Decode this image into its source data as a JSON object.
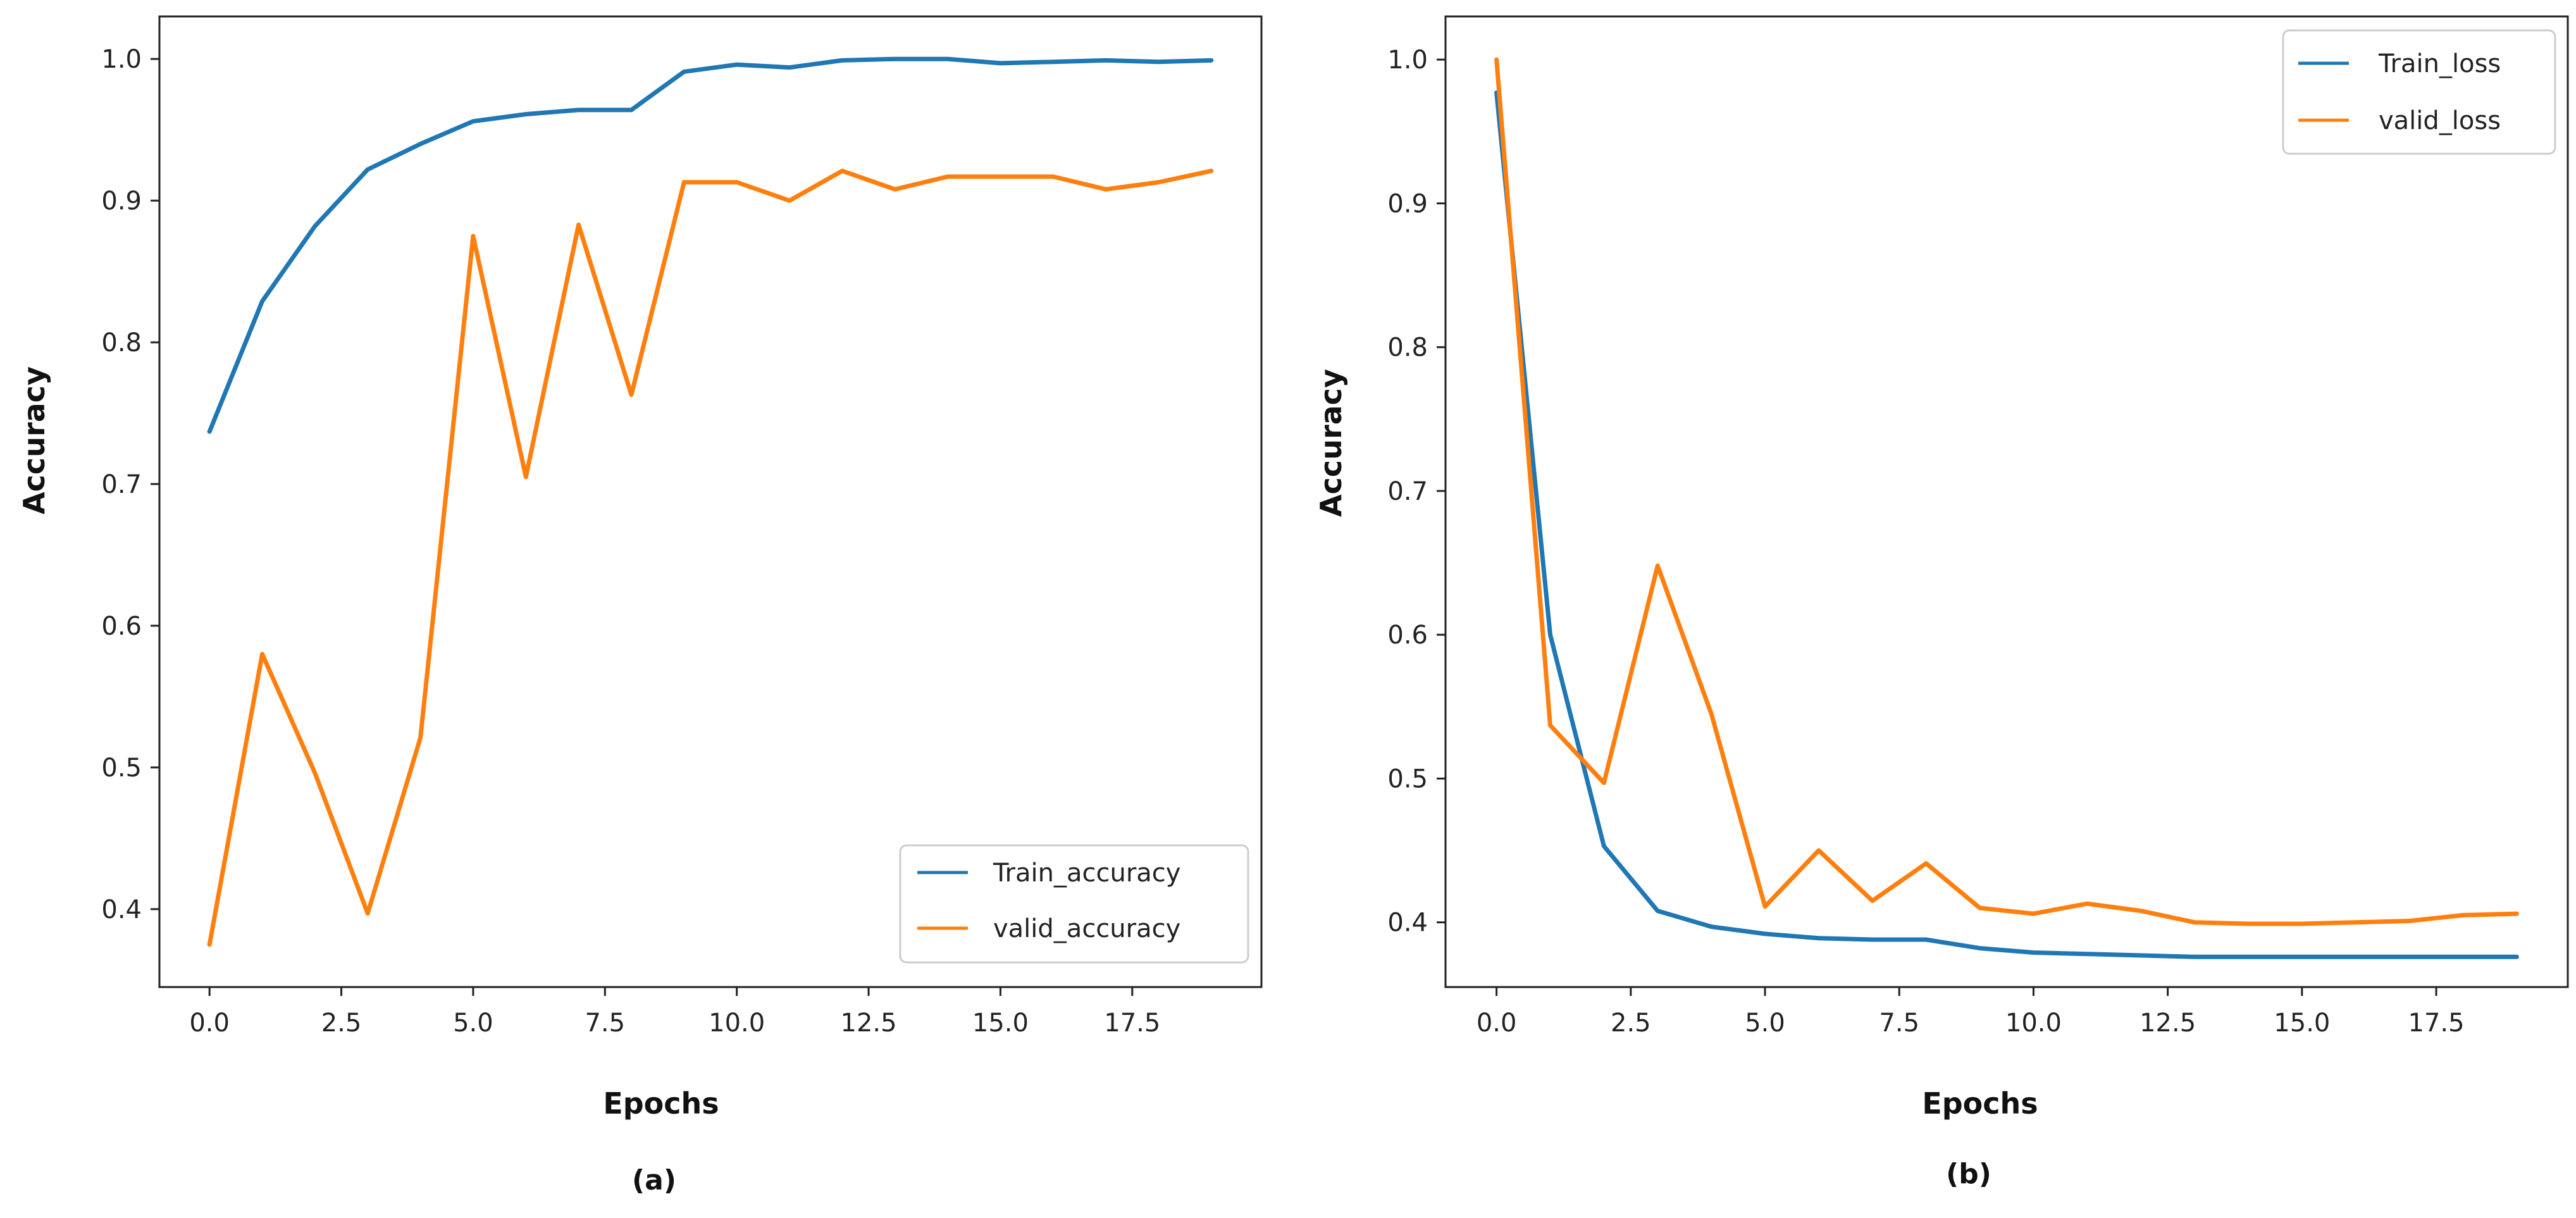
{
  "chart_data": [
    {
      "type": "line",
      "panel_label": "(a)",
      "title": "",
      "xlabel": "Epochs",
      "ylabel": "Accuracy",
      "xlim": [
        -0.95,
        19.95
      ],
      "ylim": [
        0.345,
        1.03
      ],
      "xticks": [
        0,
        2.5,
        5,
        7.5,
        10,
        12.5,
        15,
        17.5
      ],
      "xtick_labels": [
        "0.0",
        "2.5",
        "5.0",
        "7.5",
        "10.0",
        "12.5",
        "15.0",
        "17.5"
      ],
      "yticks": [
        0.4,
        0.5,
        0.6,
        0.7,
        0.8,
        0.9,
        1.0
      ],
      "ytick_labels": [
        "0.4",
        "0.5",
        "0.6",
        "0.7",
        "0.8",
        "0.9",
        "1.0"
      ],
      "grid": false,
      "legend_position": "bottom-right",
      "x": [
        0,
        1,
        2,
        3,
        4,
        5,
        6,
        7,
        8,
        9,
        10,
        11,
        12,
        13,
        14,
        15,
        16,
        17,
        18,
        19
      ],
      "series": [
        {
          "name": "Train_accuracy",
          "color": "#1f77b4",
          "values": [
            0.737,
            0.829,
            0.882,
            0.922,
            0.94,
            0.956,
            0.961,
            0.964,
            0.964,
            0.991,
            0.996,
            0.994,
            0.999,
            1.0,
            1.0,
            0.997,
            0.998,
            0.999,
            0.998,
            0.999
          ]
        },
        {
          "name": "valid_accuracy",
          "color": "#ff7f0e",
          "values": [
            0.375,
            0.58,
            0.496,
            0.397,
            0.521,
            0.875,
            0.705,
            0.883,
            0.763,
            0.913,
            0.913,
            0.9,
            0.921,
            0.908,
            0.917,
            0.917,
            0.917,
            0.908,
            0.913,
            0.921
          ]
        }
      ]
    },
    {
      "type": "line",
      "panel_label": "(b)",
      "title": "",
      "xlabel": "Epochs",
      "ylabel": "Accuracy",
      "xlim": [
        -0.95,
        19.95
      ],
      "ylim": [
        0.355,
        1.03
      ],
      "xticks": [
        0,
        2.5,
        5,
        7.5,
        10,
        12.5,
        15,
        17.5
      ],
      "xtick_labels": [
        "0.0",
        "2.5",
        "5.0",
        "7.5",
        "10.0",
        "12.5",
        "15.0",
        "17.5"
      ],
      "yticks": [
        0.4,
        0.5,
        0.6,
        0.7,
        0.8,
        0.9,
        1.0
      ],
      "ytick_labels": [
        "0.4",
        "0.5",
        "0.6",
        "0.7",
        "0.8",
        "0.9",
        "1.0"
      ],
      "grid": false,
      "legend_position": "top-right",
      "x": [
        0,
        1,
        2,
        3,
        4,
        5,
        6,
        7,
        8,
        9,
        10,
        11,
        12,
        13,
        14,
        15,
        16,
        17,
        18,
        19
      ],
      "series": [
        {
          "name": "Train_loss",
          "color": "#1f77b4",
          "values": [
            0.977,
            0.6,
            0.453,
            0.408,
            0.397,
            0.392,
            0.389,
            0.388,
            0.388,
            0.382,
            0.379,
            0.378,
            0.377,
            0.376,
            0.376,
            0.376,
            0.376,
            0.376,
            0.376,
            0.376
          ]
        },
        {
          "name": "valid_loss",
          "color": "#ff7f0e",
          "values": [
            1.0,
            0.537,
            0.497,
            0.648,
            0.545,
            0.411,
            0.45,
            0.415,
            0.441,
            0.41,
            0.406,
            0.413,
            0.408,
            0.4,
            0.399,
            0.399,
            0.4,
            0.401,
            0.405,
            0.406
          ]
        }
      ]
    }
  ]
}
